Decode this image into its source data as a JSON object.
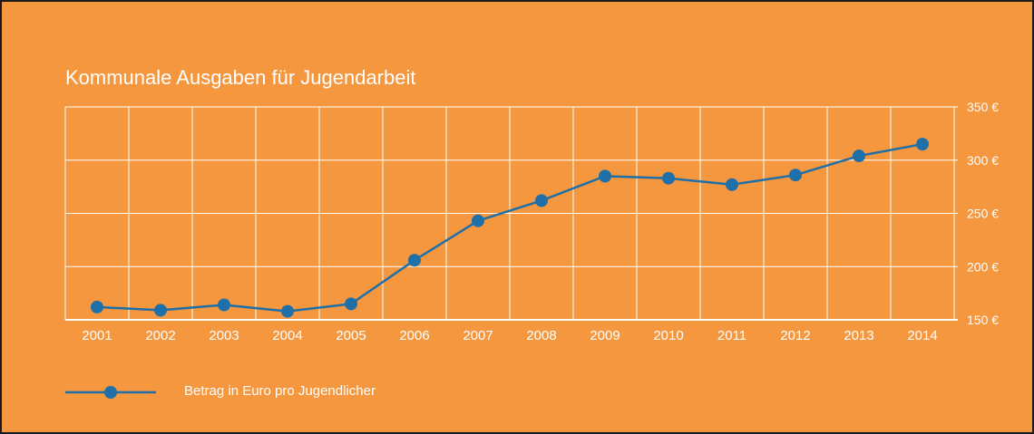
{
  "chart_data": {
    "type": "line",
    "title": "Kommunale Ausgaben für Jugendarbeit",
    "categories": [
      "2001",
      "2002",
      "2003",
      "2004",
      "2005",
      "2006",
      "2007",
      "2008",
      "2009",
      "2010",
      "2011",
      "2012",
      "2013",
      "2014"
    ],
    "series": [
      {
        "name": "Betrag in Euro pro Jugendlicher",
        "values": [
          162,
          159,
          164,
          158,
          165,
          206,
          243,
          262,
          285,
          283,
          277,
          286,
          304,
          315
        ],
        "color": "#1f6fa8"
      }
    ],
    "ylim": [
      150,
      350
    ],
    "yticks": [
      150,
      200,
      250,
      300,
      350
    ],
    "ytick_suffix": " €",
    "grid": true,
    "legend_position": "bottom-left",
    "background": "#f5973f",
    "grid_color": "#ffffff",
    "text_color": "#ffffff"
  }
}
